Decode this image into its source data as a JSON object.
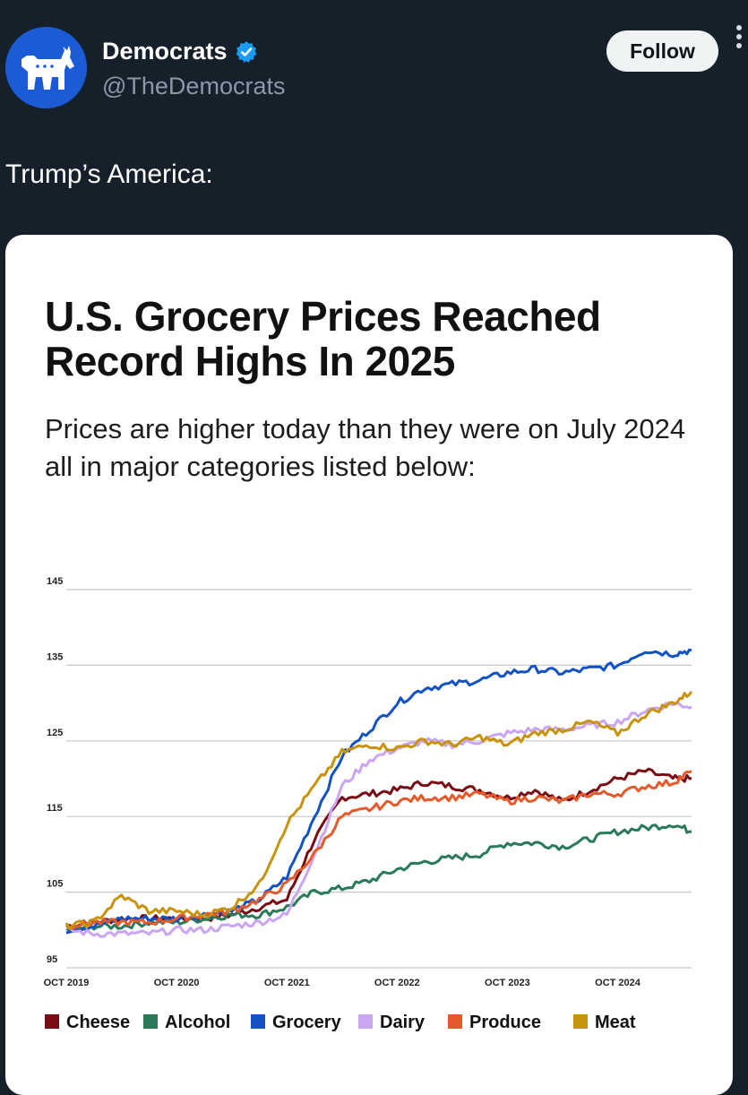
{
  "header": {
    "name": "Democrats",
    "handle": "@TheDemocrats",
    "follow_label": "Follow",
    "verified": true
  },
  "tweet": {
    "text": "Trump’s America:"
  },
  "card": {
    "title": "U.S. Grocery Prices Reached Record Highs In 2025",
    "subtitle": "Prices are higher today than they were on July 2024 all in major categories listed below:"
  },
  "colors": {
    "background": "#15202b",
    "brand_blue": "#1b5bd6",
    "verified": "#1d9bf0"
  },
  "chart_data": {
    "type": "line",
    "title": "U.S. Grocery Prices Reached Record Highs In 2025",
    "xlabel": "",
    "ylabel": "",
    "ylim": [
      95,
      145
    ],
    "yticks": [
      95,
      105,
      115,
      125,
      135,
      145
    ],
    "xticks": [
      "OCT 2019",
      "OCT 2020",
      "OCT 2021",
      "OCT 2022",
      "OCT 2023",
      "OCT 2024"
    ],
    "x_decimal_years": [
      2019.75,
      2020.0,
      2020.25,
      2020.5,
      2020.75,
      2021.0,
      2021.25,
      2021.5,
      2021.75,
      2022.0,
      2022.25,
      2022.5,
      2022.75,
      2023.0,
      2023.25,
      2023.5,
      2023.75,
      2024.0,
      2024.25,
      2024.5,
      2024.75,
      2025.0,
      2025.25,
      2025.42
    ],
    "grid": true,
    "legend_position": "bottom",
    "series": [
      {
        "name": "Cheese",
        "color": "#7a0c14",
        "values": [
          100.5,
          101,
          101.5,
          101.5,
          101.5,
          101.5,
          102,
          103,
          104,
          112,
          117.5,
          118,
          118.5,
          119.5,
          119,
          118.5,
          117.5,
          118.5,
          117,
          118.5,
          120,
          121,
          120,
          120
        ]
      },
      {
        "name": "Alcohol",
        "color": "#2a7a5a",
        "values": [
          100,
          100.5,
          100.5,
          101,
          101,
          101.5,
          102,
          102,
          103,
          105,
          105.5,
          106.5,
          108,
          109,
          109.5,
          110,
          111.5,
          111.5,
          111,
          112,
          113,
          113.5,
          114,
          113
        ]
      },
      {
        "name": "Grocery",
        "color": "#1352c4",
        "values": [
          100,
          100.5,
          101.5,
          101.5,
          101.5,
          102,
          102.5,
          104,
          107,
          115,
          123,
          126.5,
          130,
          132,
          132.5,
          133,
          134,
          134.5,
          134,
          134.5,
          135,
          137,
          136.5,
          137
        ]
      },
      {
        "name": "Dairy",
        "color": "#c9a5f2",
        "values": [
          100,
          99.5,
          99.5,
          99.5,
          100,
          100,
          100.5,
          101,
          102,
          110,
          119,
          122.5,
          124,
          125,
          124.5,
          125,
          126,
          126.5,
          126.5,
          127,
          127.5,
          129,
          130,
          129.5
        ]
      },
      {
        "name": "Produce",
        "color": "#e55a2b",
        "values": [
          100.5,
          101,
          101,
          101,
          101.5,
          102,
          102.5,
          104,
          106,
          110,
          115,
          116,
          117,
          117.5,
          117.5,
          118,
          117,
          117.5,
          117,
          118,
          118,
          119,
          119.5,
          121
        ]
      },
      {
        "name": "Meat",
        "color": "#c8930c",
        "values": [
          100.5,
          101,
          104.5,
          102.5,
          102.5,
          102,
          103,
          106,
          114,
          119,
          123.5,
          124.5,
          124,
          125,
          124.5,
          125.5,
          124.5,
          126,
          126.5,
          127.5,
          126,
          128.5,
          130,
          131.5
        ]
      }
    ]
  }
}
